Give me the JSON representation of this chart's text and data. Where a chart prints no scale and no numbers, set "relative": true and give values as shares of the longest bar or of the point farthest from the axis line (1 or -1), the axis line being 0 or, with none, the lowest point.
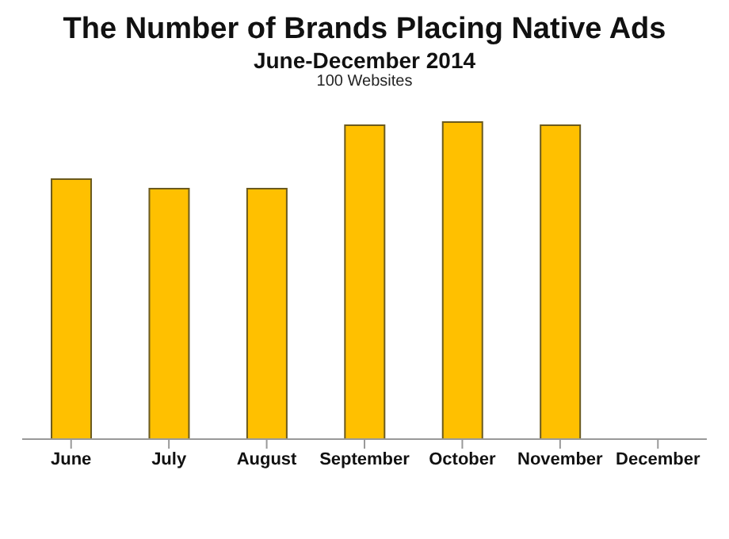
{
  "chart_data": {
    "type": "bar",
    "title": "The Number of Brands Placing Native Ads",
    "subtitle": "June-December 2014",
    "annotations": [
      "100 Websites"
    ],
    "relative": true,
    "categories": [
      "June",
      "July",
      "August",
      "September",
      "October",
      "November",
      "December"
    ],
    "values": [
      0.82,
      0.79,
      0.79,
      0.99,
      1,
      0.99,
      null
    ],
    "color": "#ffc000"
  }
}
